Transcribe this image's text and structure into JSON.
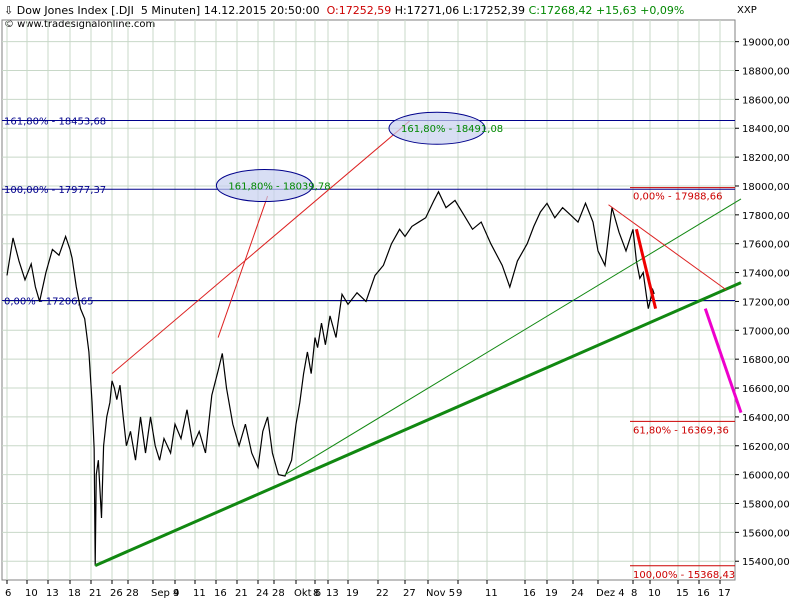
{
  "header": {
    "arrow": "⇩",
    "title": "Dow Jones Index [.DJI  5 Minuten] 14.12.2015 20:50:00",
    "open": "O:17252,59",
    "high": "H:17271,06",
    "low": "L:17252,39",
    "close": "C:17268,42",
    "change": "+15,63 +0,09%",
    "source": "© www.tradesignalonline.com",
    "symbol": "XXP"
  },
  "chart_data": {
    "type": "line",
    "title": "Dow Jones Index [.DJI  5 Minuten]",
    "ylim": [
      15270,
      19150
    ],
    "y_ticks": [
      {
        "value": 15400,
        "label": "15400,00"
      },
      {
        "value": 15600,
        "label": "15600,00"
      },
      {
        "value": 15800,
        "label": "15800,00"
      },
      {
        "value": 16000,
        "label": "16000,00"
      },
      {
        "value": 16200,
        "label": "16200,00"
      },
      {
        "value": 16400,
        "label": "16400,00"
      },
      {
        "value": 16600,
        "label": "16600,00"
      },
      {
        "value": 16800,
        "label": "16800,00"
      },
      {
        "value": 17000,
        "label": "17000,00"
      },
      {
        "value": 17200,
        "label": "17200,00"
      },
      {
        "value": 17400,
        "label": "17400,00"
      },
      {
        "value": 17600,
        "label": "17600,00"
      },
      {
        "value": 17800,
        "label": "17800,00"
      },
      {
        "value": 18000,
        "label": "18000,00"
      },
      {
        "value": 18200,
        "label": "18200,00"
      },
      {
        "value": 18400,
        "label": "18400,00"
      },
      {
        "value": 18600,
        "label": "18600,00"
      },
      {
        "value": 18800,
        "label": "18800,00"
      },
      {
        "value": 19000,
        "label": "19000,00"
      }
    ],
    "x_ticks": [
      {
        "i": 0,
        "label": "6"
      },
      {
        "i": 1,
        "label": "10"
      },
      {
        "i": 2,
        "label": "13"
      },
      {
        "i": 3,
        "label": "18"
      },
      {
        "i": 4,
        "label": "21"
      },
      {
        "i": 5,
        "label": "26"
      },
      {
        "i": 6,
        "label": "28"
      },
      {
        "i": 7,
        "label": "Sep 4"
      },
      {
        "i": 8,
        "label": "9"
      },
      {
        "i": 9,
        "label": "11"
      },
      {
        "i": 10,
        "label": "16"
      },
      {
        "i": 11,
        "label": "21"
      },
      {
        "i": 12,
        "label": "24"
      },
      {
        "i": 13,
        "label": "28"
      },
      {
        "i": 14,
        "label": "Okt 6"
      },
      {
        "i": 15,
        "label": "8"
      },
      {
        "i": 16,
        "label": "13"
      },
      {
        "i": 17,
        "label": "19"
      },
      {
        "i": 18,
        "label": "22"
      },
      {
        "i": 19,
        "label": "27"
      },
      {
        "i": 20,
        "label": "Nov 5"
      },
      {
        "i": 21,
        "label": "9"
      },
      {
        "i": 22,
        "label": "11"
      },
      {
        "i": 23,
        "label": "16"
      },
      {
        "i": 24,
        "label": "19"
      },
      {
        "i": 25,
        "label": "24"
      },
      {
        "i": 26,
        "label": "Dez 4"
      },
      {
        "i": 27,
        "label": "8"
      },
      {
        "i": 28,
        "label": "10"
      },
      {
        "i": 29,
        "label": "15"
      },
      {
        "i": 30,
        "label": "16"
      },
      {
        "i": 31,
        "label": "17"
      }
    ],
    "grid": true,
    "price_series": [
      [
        0,
        17380
      ],
      [
        0.3,
        17640
      ],
      [
        0.6,
        17480
      ],
      [
        0.9,
        17350
      ],
      [
        1.2,
        17460
      ],
      [
        1.4,
        17300
      ],
      [
        1.6,
        17200
      ],
      [
        1.9,
        17400
      ],
      [
        2.2,
        17560
      ],
      [
        2.5,
        17520
      ],
      [
        2.8,
        17650
      ],
      [
        3.0,
        17560
      ],
      [
        3.1,
        17500
      ],
      [
        3.3,
        17300
      ],
      [
        3.5,
        17150
      ],
      [
        3.7,
        17080
      ],
      [
        3.9,
        16850
      ],
      [
        4.05,
        16500
      ],
      [
        4.15,
        16180
      ],
      [
        4.2,
        15370
      ],
      [
        4.25,
        16000
      ],
      [
        4.35,
        16100
      ],
      [
        4.5,
        15700
      ],
      [
        4.6,
        16200
      ],
      [
        4.75,
        16400
      ],
      [
        4.9,
        16500
      ],
      [
        5.0,
        16650
      ],
      [
        5.15,
        16600
      ],
      [
        5.3,
        16520
      ],
      [
        5.5,
        16620
      ],
      [
        5.7,
        16400
      ],
      [
        5.9,
        16200
      ],
      [
        6.1,
        16300
      ],
      [
        6.3,
        16100
      ],
      [
        6.5,
        16400
      ],
      [
        6.7,
        16150
      ],
      [
        6.9,
        16400
      ],
      [
        7.1,
        16200
      ],
      [
        7.3,
        16100
      ],
      [
        7.5,
        16250
      ],
      [
        7.8,
        16150
      ],
      [
        8.0,
        16350
      ],
      [
        8.3,
        16250
      ],
      [
        8.6,
        16450
      ],
      [
        8.9,
        16200
      ],
      [
        9.2,
        16300
      ],
      [
        9.5,
        16150
      ],
      [
        9.8,
        16550
      ],
      [
        10.1,
        16720
      ],
      [
        10.3,
        16840
      ],
      [
        10.5,
        16600
      ],
      [
        10.8,
        16350
      ],
      [
        11.1,
        16200
      ],
      [
        11.4,
        16350
      ],
      [
        11.7,
        16150
      ],
      [
        12.0,
        16050
      ],
      [
        12.3,
        16300
      ],
      [
        12.6,
        16400
      ],
      [
        12.9,
        16150
      ],
      [
        13.2,
        16000
      ],
      [
        13.5,
        15990
      ],
      [
        13.8,
        16100
      ],
      [
        14.0,
        16350
      ],
      [
        14.2,
        16500
      ],
      [
        14.4,
        16700
      ],
      [
        14.6,
        16850
      ],
      [
        14.8,
        16700
      ],
      [
        15.0,
        16950
      ],
      [
        15.2,
        16880
      ],
      [
        15.5,
        17050
      ],
      [
        15.8,
        16900
      ],
      [
        16.1,
        17100
      ],
      [
        16.4,
        16950
      ],
      [
        16.7,
        17250
      ],
      [
        17.0,
        17180
      ],
      [
        17.3,
        17260
      ],
      [
        17.6,
        17200
      ],
      [
        17.9,
        17380
      ],
      [
        18.2,
        17450
      ],
      [
        18.5,
        17600
      ],
      [
        18.8,
        17700
      ],
      [
        19.0,
        17650
      ],
      [
        19.3,
        17720
      ],
      [
        19.6,
        17750
      ],
      [
        19.9,
        17780
      ],
      [
        20.2,
        17900
      ],
      [
        20.35,
        17960
      ],
      [
        20.6,
        17850
      ],
      [
        20.9,
        17900
      ],
      [
        21.2,
        17800
      ],
      [
        21.5,
        17700
      ],
      [
        21.8,
        17750
      ],
      [
        22.1,
        17600
      ],
      [
        22.4,
        17450
      ],
      [
        22.6,
        17300
      ],
      [
        22.8,
        17480
      ],
      [
        23.1,
        17600
      ],
      [
        23.4,
        17720
      ],
      [
        23.7,
        17820
      ],
      [
        24.0,
        17880
      ],
      [
        24.3,
        17780
      ],
      [
        24.6,
        17850
      ],
      [
        24.9,
        17800
      ],
      [
        25.2,
        17750
      ],
      [
        25.5,
        17880
      ],
      [
        25.8,
        17750
      ],
      [
        26.0,
        17550
      ],
      [
        26.2,
        17450
      ],
      [
        26.4,
        17850
      ],
      [
        26.6,
        17680
      ],
      [
        26.8,
        17550
      ],
      [
        27.0,
        17700
      ],
      [
        27.2,
        17480
      ],
      [
        27.4,
        17360
      ],
      [
        27.6,
        17400
      ],
      [
        27.8,
        17230
      ],
      [
        27.9,
        17150
      ],
      [
        28.0,
        17200
      ],
      [
        28.1,
        17280
      ],
      [
        28.15,
        17252
      ]
    ],
    "horizontal_levels": [
      {
        "value": 18453.68,
        "color": "#00008b",
        "label": "161,80% - 18453,68"
      },
      {
        "value": 17977.37,
        "color": "#00008b",
        "label": "100,00% - 17977,37"
      },
      {
        "value": 17206.65,
        "color": "#00008b",
        "label": "0,00% - 17206,65"
      },
      {
        "value": 17988.66,
        "color": "#cc0000",
        "label": "0,00% - 17988,66"
      },
      {
        "value": 16369.36,
        "color": "#cc0000",
        "label": "61,80% - 16369,36"
      },
      {
        "value": 15368.43,
        "color": "#cc0000",
        "label": "100,00% - 15368,43"
      }
    ],
    "ellipse_labels": [
      {
        "i": 20.3,
        "value": 18400,
        "text": "161,80% - 18491,08",
        "color": "#008800"
      },
      {
        "i": 12.4,
        "value": 18003,
        "text": "161,80% - 18039,78",
        "color": "#008800"
      }
    ],
    "trendlines": [
      {
        "from": [
          4.2,
          15370
        ],
        "to": [
          32.0,
          17330
        ],
        "color": "#118811",
        "width": 3
      },
      {
        "from": [
          13.5,
          16000
        ],
        "to": [
          32.0,
          17910
        ],
        "color": "#118811",
        "width": 1
      },
      {
        "from": [
          5.0,
          16700
        ],
        "to": [
          19.2,
          18450
        ],
        "color": "#dd2222",
        "width": 1
      },
      {
        "from": [
          10.1,
          16950
        ],
        "to": [
          12.6,
          17930
        ],
        "color": "#dd2222",
        "width": 1
      },
      {
        "from": [
          26.3,
          17870
        ],
        "to": [
          31.3,
          17280
        ],
        "color": "#dd2222",
        "width": 1
      },
      {
        "from": [
          27.2,
          17700
        ],
        "to": [
          28.2,
          17150
        ],
        "color": "#ee0000",
        "width": 3
      },
      {
        "from": [
          30.3,
          17150
        ],
        "to": [
          32.0,
          16430
        ],
        "color": "#ee00cc",
        "width": 3
      }
    ]
  }
}
